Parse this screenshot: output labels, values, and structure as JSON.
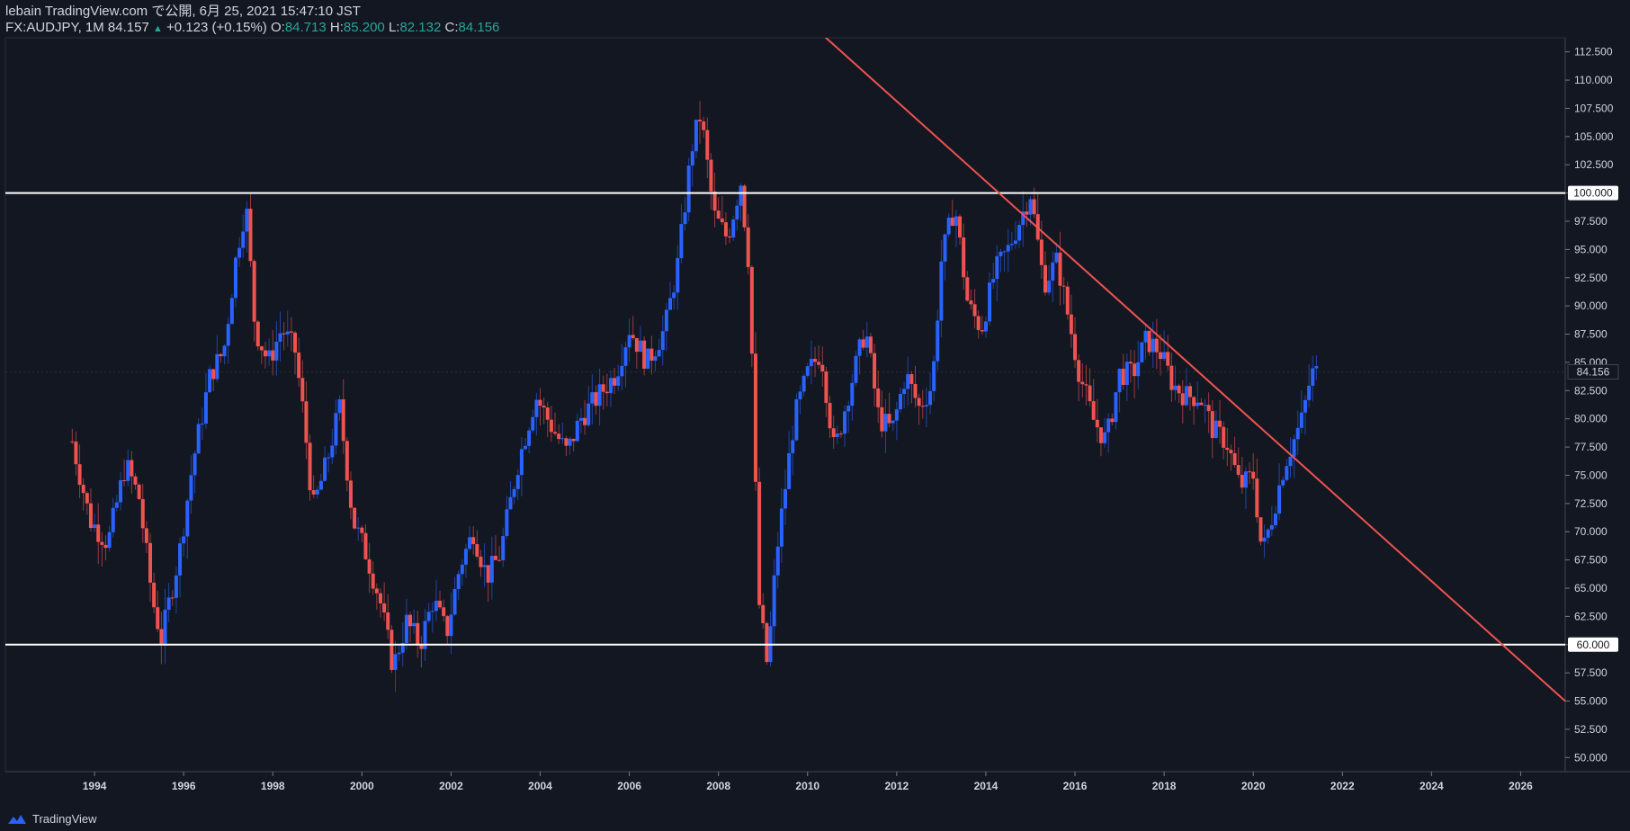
{
  "header": {
    "publisher_line": "lebain TradingView.com で公開, 6月 25, 2021 15:47:10 JST",
    "symbol": "FX:AUDJPY, 1M 84.157",
    "arrow": "▲",
    "change": "+0.123 (+0.15%)",
    "open_label": "O:",
    "open_value": "84.713",
    "high_label": "H:",
    "high_value": "85.200",
    "low_label": "L:",
    "low_value": "82.132",
    "close_label": "C:",
    "close_value": "84.156"
  },
  "footer": {
    "brand": "TradingView",
    "logo_icon": "tradingview-logo-icon"
  },
  "colors": {
    "background": "#131722",
    "up": "#2962ff",
    "down": "#ef5350",
    "trendline": "#f05350",
    "level": "#ffffff",
    "text": "#d1d4dc",
    "accent": "#26a69a"
  },
  "chart_data": {
    "type": "candlestick",
    "symbol": "FX:AUDJPY",
    "interval": "1M",
    "xlim": [
      1992.0,
      2027.0
    ],
    "ylim": [
      48.75,
      113.75
    ],
    "y_ticks": [
      "50.000",
      "52.500",
      "55.000",
      "57.500",
      "60.000",
      "62.500",
      "65.000",
      "67.500",
      "70.000",
      "72.500",
      "75.000",
      "77.500",
      "80.000",
      "82.500",
      "85.000",
      "87.500",
      "90.000",
      "92.500",
      "95.000",
      "97.500",
      "100.000",
      "102.500",
      "105.000",
      "107.500",
      "110.000",
      "112.500"
    ],
    "x_ticks": [
      "1994",
      "1996",
      "1998",
      "2000",
      "2002",
      "2004",
      "2006",
      "2008",
      "2010",
      "2012",
      "2014",
      "2016",
      "2018",
      "2020",
      "2022",
      "2024",
      "2026"
    ],
    "last_price": "84.156",
    "horizontal_levels": [
      {
        "price": 100.0,
        "label": "100.000"
      },
      {
        "price": 60.0,
        "label": "60.000"
      }
    ],
    "trendline": {
      "from": [
        2010.2,
        114.5
      ],
      "to": [
        2027.0,
        55.0
      ]
    },
    "close_path": [
      [
        1993.5,
        78
      ],
      [
        1993.9,
        71
      ],
      [
        1994.3,
        69
      ],
      [
        1994.7,
        76
      ],
      [
        1995.0,
        73
      ],
      [
        1995.3,
        64
      ],
      [
        1995.5,
        60.5
      ],
      [
        1995.9,
        68
      ],
      [
        1996.2,
        76
      ],
      [
        1996.6,
        84
      ],
      [
        1996.9,
        86
      ],
      [
        1997.2,
        95
      ],
      [
        1997.4,
        99
      ],
      [
        1997.6,
        88
      ],
      [
        1997.9,
        85
      ],
      [
        1998.2,
        88
      ],
      [
        1998.5,
        86
      ],
      [
        1998.7,
        80
      ],
      [
        1998.9,
        72
      ],
      [
        1999.2,
        76
      ],
      [
        1999.5,
        81
      ],
      [
        1999.8,
        71
      ],
      [
        2000.1,
        68
      ],
      [
        2000.4,
        64
      ],
      [
        2000.7,
        58
      ],
      [
        2001.0,
        62
      ],
      [
        2001.3,
        60
      ],
      [
        2001.6,
        64
      ],
      [
        2001.9,
        61
      ],
      [
        2002.2,
        67
      ],
      [
        2002.5,
        70
      ],
      [
        2002.8,
        66
      ],
      [
        2003.1,
        68
      ],
      [
        2003.5,
        76
      ],
      [
        2003.9,
        82
      ],
      [
        2004.3,
        79
      ],
      [
        2004.6,
        77
      ],
      [
        2004.9,
        80
      ],
      [
        2005.3,
        82
      ],
      [
        2005.7,
        84
      ],
      [
        2006.0,
        88
      ],
      [
        2006.4,
        85
      ],
      [
        2006.8,
        88
      ],
      [
        2007.1,
        94
      ],
      [
        2007.4,
        104
      ],
      [
        2007.6,
        107
      ],
      [
        2007.9,
        98
      ],
      [
        2008.2,
        96
      ],
      [
        2008.5,
        101
      ],
      [
        2008.7,
        93
      ],
      [
        2008.9,
        64
      ],
      [
        2009.1,
        58
      ],
      [
        2009.3,
        68
      ],
      [
        2009.7,
        80
      ],
      [
        2010.0,
        84
      ],
      [
        2010.3,
        86
      ],
      [
        2010.6,
        77
      ],
      [
        2010.9,
        82
      ],
      [
        2011.3,
        88
      ],
      [
        2011.6,
        80
      ],
      [
        2011.9,
        79
      ],
      [
        2012.2,
        84
      ],
      [
        2012.5,
        81
      ],
      [
        2012.8,
        83
      ],
      [
        2013.0,
        94
      ],
      [
        2013.3,
        99
      ],
      [
        2013.6,
        90
      ],
      [
        2013.9,
        88
      ],
      [
        2014.2,
        93
      ],
      [
        2014.5,
        95
      ],
      [
        2014.8,
        98
      ],
      [
        2015.0,
        100
      ],
      [
        2015.3,
        92
      ],
      [
        2015.6,
        94
      ],
      [
        2015.9,
        88
      ],
      [
        2016.1,
        84
      ],
      [
        2016.4,
        80
      ],
      [
        2016.7,
        78
      ],
      [
        2017.0,
        84
      ],
      [
        2017.3,
        84
      ],
      [
        2017.6,
        87
      ],
      [
        2017.9,
        86
      ],
      [
        2018.2,
        83
      ],
      [
        2018.5,
        82
      ],
      [
        2018.8,
        82
      ],
      [
        2019.1,
        79
      ],
      [
        2019.4,
        78
      ],
      [
        2019.7,
        74
      ],
      [
        2020.0,
        75
      ],
      [
        2020.2,
        68
      ],
      [
        2020.4,
        71
      ],
      [
        2020.7,
        76
      ],
      [
        2020.9,
        78
      ],
      [
        2021.1,
        80
      ],
      [
        2021.3,
        84
      ],
      [
        2021.5,
        84.156
      ]
    ]
  }
}
